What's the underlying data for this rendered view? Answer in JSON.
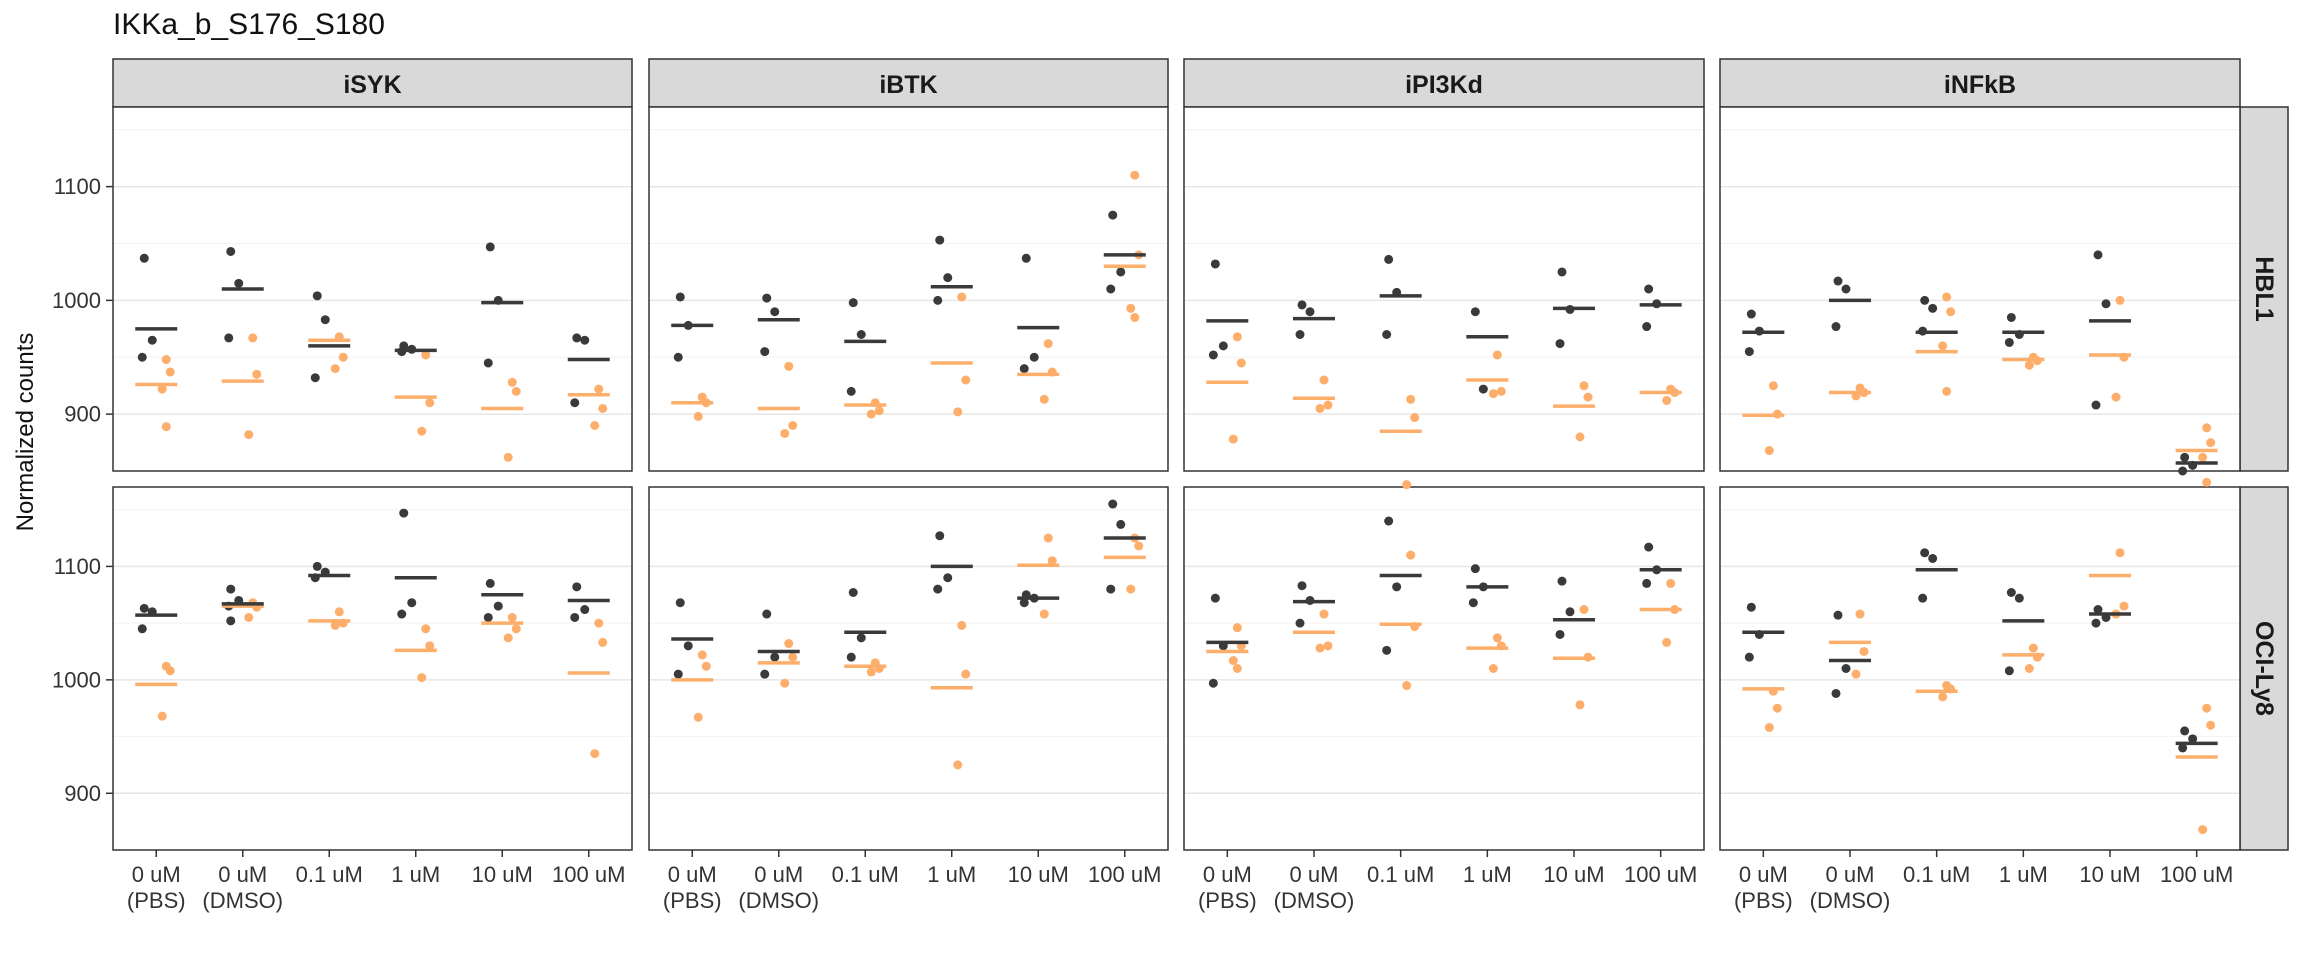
{
  "chart_data": {
    "type": "scatter",
    "title": "IKKa_b_S176_S180",
    "ylabel": "Normalized counts",
    "xlabel": "",
    "columns": [
      "iSYK",
      "iBTK",
      "iPI3Kd",
      "iNFkB"
    ],
    "rows": [
      "HBL1",
      "OCI-Ly8"
    ],
    "categories": [
      [
        "0 uM",
        "(PBS)"
      ],
      [
        "0 uM",
        "(DMSO)"
      ],
      [
        "0.1 uM"
      ],
      [
        "1 uM"
      ],
      [
        "10 uM"
      ],
      [
        "100 uM"
      ]
    ],
    "ylim": [
      850,
      1170
    ],
    "yticks": [
      900,
      1000,
      1100
    ],
    "series_colors": {
      "dark": "#3a3a3a",
      "orange": "#fdae6b"
    },
    "panels": [
      {
        "column": "iSYK",
        "row": "HBL1",
        "dark": [
          [
            1037,
            965,
            950
          ],
          [
            1043,
            1015,
            967
          ],
          [
            1004,
            983,
            932
          ],
          [
            960,
            957,
            955
          ],
          [
            1047,
            1000,
            945
          ],
          [
            967,
            965,
            910
          ]
        ],
        "dark_mean": [
          975,
          1010,
          960,
          956,
          998,
          948
        ],
        "orange": [
          [
            948,
            937,
            922,
            889
          ],
          [
            967,
            935,
            882
          ],
          [
            968,
            950,
            940
          ],
          [
            952,
            910,
            885
          ],
          [
            928,
            920,
            862
          ],
          [
            922,
            905,
            890
          ]
        ],
        "orange_mean": [
          926,
          929,
          965,
          915,
          905,
          917
        ]
      },
      {
        "column": "iBTK",
        "row": "HBL1",
        "dark": [
          [
            1003,
            978,
            950
          ],
          [
            1002,
            990,
            955
          ],
          [
            998,
            970,
            920
          ],
          [
            1053,
            1020,
            1000
          ],
          [
            1037,
            950,
            940
          ],
          [
            1075,
            1025,
            1010
          ]
        ],
        "dark_mean": [
          978,
          983,
          964,
          1012,
          976,
          1040
        ],
        "orange": [
          [
            915,
            910,
            898
          ],
          [
            942,
            890,
            883
          ],
          [
            910,
            903,
            900
          ],
          [
            1003,
            930,
            902
          ],
          [
            962,
            937,
            913
          ],
          [
            1110,
            1040,
            993,
            985
          ]
        ],
        "orange_mean": [
          910,
          905,
          908,
          945,
          935,
          1030
        ]
      },
      {
        "column": "iPI3Kd",
        "row": "HBL1",
        "dark": [
          [
            1032,
            960,
            952
          ],
          [
            996,
            990,
            970
          ],
          [
            1036,
            1007,
            970
          ],
          [
            990,
            922
          ],
          [
            1025,
            992,
            962
          ],
          [
            1010,
            997,
            977
          ]
        ],
        "dark_mean": [
          982,
          984,
          1004,
          968,
          993,
          996
        ],
        "orange": [
          [
            968,
            945,
            878
          ],
          [
            930,
            908,
            905
          ],
          [
            913,
            897,
            838
          ],
          [
            952,
            920,
            918
          ],
          [
            925,
            915,
            880
          ],
          [
            922,
            919,
            912
          ]
        ],
        "orange_mean": [
          928,
          914,
          885,
          930,
          907,
          919
        ]
      },
      {
        "column": "iNFkB",
        "row": "HBL1",
        "dark": [
          [
            988,
            973,
            955
          ],
          [
            1017,
            1010,
            977
          ],
          [
            1000,
            993,
            973
          ],
          [
            985,
            970,
            963
          ],
          [
            1040,
            997,
            908
          ],
          [
            862,
            855,
            850
          ]
        ],
        "dark_mean": [
          972,
          1000,
          972,
          972,
          982,
          857
        ],
        "orange": [
          [
            925,
            900,
            868
          ],
          [
            923,
            919,
            916
          ],
          [
            1003,
            990,
            960,
            920
          ],
          [
            950,
            947,
            943
          ],
          [
            1000,
            950,
            915
          ],
          [
            888,
            875,
            862,
            840
          ]
        ],
        "orange_mean": [
          899,
          919,
          955,
          948,
          952,
          868
        ]
      },
      {
        "column": "iSYK",
        "row": "OCI-Ly8",
        "dark": [
          [
            1063,
            1060,
            1045
          ],
          [
            1080,
            1070,
            1065,
            1052
          ],
          [
            1100,
            1095,
            1090
          ],
          [
            1147,
            1068,
            1058
          ],
          [
            1085,
            1065,
            1055
          ],
          [
            1082,
            1062,
            1055
          ]
        ],
        "dark_mean": [
          1057,
          1067,
          1092,
          1090,
          1075,
          1070
        ],
        "orange": [
          [
            1012,
            1008,
            968
          ],
          [
            1068,
            1064,
            1055
          ],
          [
            1060,
            1050,
            1048
          ],
          [
            1045,
            1030,
            1002
          ],
          [
            1055,
            1045,
            1037
          ],
          [
            1050,
            1033,
            935
          ]
        ],
        "orange_mean": [
          996,
          1065,
          1052,
          1026,
          1050,
          1006
        ]
      },
      {
        "column": "iBTK",
        "row": "OCI-Ly8",
        "dark": [
          [
            1068,
            1030,
            1005
          ],
          [
            1058,
            1020,
            1005
          ],
          [
            1077,
            1037,
            1020
          ],
          [
            1127,
            1090,
            1080
          ],
          [
            1075,
            1072,
            1068
          ],
          [
            1155,
            1137,
            1080
          ]
        ],
        "dark_mean": [
          1036,
          1025,
          1042,
          1100,
          1072,
          1125
        ],
        "orange": [
          [
            1022,
            1012,
            967
          ],
          [
            1032,
            1020,
            997
          ],
          [
            1015,
            1010,
            1007
          ],
          [
            1048,
            1005,
            925
          ],
          [
            1125,
            1105,
            1058
          ],
          [
            1125,
            1118,
            1080
          ]
        ],
        "orange_mean": [
          1000,
          1015,
          1012,
          993,
          1101,
          1108
        ]
      },
      {
        "column": "iPI3Kd",
        "row": "OCI-Ly8",
        "dark": [
          [
            1072,
            1030,
            997
          ],
          [
            1083,
            1070,
            1050
          ],
          [
            1140,
            1082,
            1026
          ],
          [
            1098,
            1082,
            1068
          ],
          [
            1087,
            1060,
            1040
          ],
          [
            1117,
            1097,
            1085
          ]
        ],
        "dark_mean": [
          1033,
          1069,
          1092,
          1082,
          1053,
          1097
        ],
        "orange": [
          [
            1046,
            1030,
            1017,
            1010
          ],
          [
            1058,
            1030,
            1028
          ],
          [
            1110,
            1047,
            995
          ],
          [
            1037,
            1030,
            1010
          ],
          [
            1062,
            1020,
            978
          ],
          [
            1085,
            1062,
            1033
          ]
        ],
        "orange_mean": [
          1025,
          1042,
          1049,
          1028,
          1019,
          1062
        ]
      },
      {
        "column": "iNFkB",
        "row": "OCI-Ly8",
        "dark": [
          [
            1064,
            1040,
            1020
          ],
          [
            1057,
            1010,
            988
          ],
          [
            1112,
            1107,
            1072
          ],
          [
            1077,
            1072,
            1008
          ],
          [
            1062,
            1055,
            1050
          ],
          [
            955,
            948,
            940
          ]
        ],
        "dark_mean": [
          1042,
          1017,
          1097,
          1052,
          1058,
          944
        ],
        "orange": [
          [
            990,
            975,
            958
          ],
          [
            1058,
            1025,
            1005
          ],
          [
            995,
            992,
            985
          ],
          [
            1028,
            1020,
            1010
          ],
          [
            1112,
            1065,
            1058
          ],
          [
            975,
            960,
            868
          ]
        ],
        "orange_mean": [
          992,
          1033,
          990,
          1022,
          1092,
          932
        ]
      }
    ]
  }
}
